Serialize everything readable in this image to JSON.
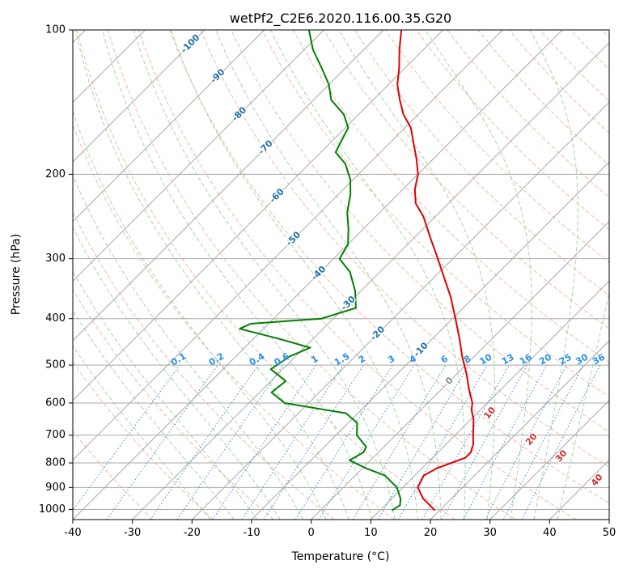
{
  "chart_data": {
    "type": "line",
    "subtype": "skew-t log-p diagram",
    "title": "wetPf2_C2E6.2020.116.00.35.G20",
    "xlabel": "Temperature (°C)",
    "ylabel": "Pressure (hPa)",
    "xlim": [
      -40,
      50
    ],
    "ylim": [
      1050,
      100
    ],
    "x_ticks": [
      -40,
      -30,
      -20,
      -10,
      0,
      10,
      20,
      30,
      40,
      50
    ],
    "y_ticks": [
      100,
      200,
      300,
      400,
      500,
      600,
      700,
      800,
      900,
      1000
    ],
    "grid": true,
    "colors": {
      "temperature": "#e00000",
      "dewpoint": "#008000",
      "isotherm": "#a8a8a8",
      "dry_adiabat": "#f4a07c",
      "moist_adiabat": "#98cc98",
      "mixing_ratio": "#3b8ee0",
      "isotherm_label": "#1f6fa8",
      "mixing_ratio_label": "#2a90e8",
      "adiabat_label": "#d03030"
    },
    "isotherm_labels": [
      -100,
      -90,
      -80,
      -70,
      -60,
      -50,
      -40,
      -30,
      -20,
      -10,
      0
    ],
    "mixing_ratio_labels": [
      "0.1",
      "0.2",
      "0.4",
      "0.6",
      "1",
      "1.5",
      "2",
      "3",
      "4",
      "6",
      "8",
      "10",
      "13",
      "16",
      "20",
      "25",
      "30",
      "36"
    ],
    "mixing_ratio_values": [
      0.1,
      0.2,
      0.4,
      0.6,
      1,
      1.5,
      2,
      3,
      4,
      6,
      8,
      10,
      13,
      16,
      20,
      25,
      30,
      36
    ],
    "adiabat_labels": [
      "10",
      "20",
      "30",
      "40"
    ],
    "series": [
      {
        "name": "Temperature",
        "points": [
          [
            1005,
            19.2
          ],
          [
            980,
            17.5
          ],
          [
            950,
            15.3
          ],
          [
            900,
            12.5
          ],
          [
            850,
            11.5
          ],
          [
            820,
            12.5
          ],
          [
            800,
            14.0
          ],
          [
            780,
            15.5
          ],
          [
            760,
            15.5
          ],
          [
            730,
            14.5
          ],
          [
            700,
            13.0
          ],
          [
            650,
            10.5
          ],
          [
            620,
            8.5
          ],
          [
            600,
            7.5
          ],
          [
            560,
            4.5
          ],
          [
            520,
            1.5
          ],
          [
            480,
            -2.0
          ],
          [
            440,
            -5.5
          ],
          [
            400,
            -9.5
          ],
          [
            360,
            -14.0
          ],
          [
            320,
            -19.5
          ],
          [
            300,
            -22.5
          ],
          [
            270,
            -27.5
          ],
          [
            245,
            -32.0
          ],
          [
            230,
            -35.5
          ],
          [
            215,
            -38.0
          ],
          [
            200,
            -40.0
          ],
          [
            185,
            -43.0
          ],
          [
            170,
            -46.5
          ],
          [
            160,
            -49.0
          ],
          [
            150,
            -52.5
          ],
          [
            140,
            -55.5
          ],
          [
            130,
            -58.5
          ],
          [
            120,
            -61.0
          ],
          [
            110,
            -64.0
          ],
          [
            100,
            -67.0
          ]
        ]
      },
      {
        "name": "Dewpoint",
        "points": [
          [
            1005,
            12.0
          ],
          [
            980,
            12.5
          ],
          [
            950,
            11.5
          ],
          [
            900,
            9.0
          ],
          [
            850,
            5.0
          ],
          [
            820,
            0.5
          ],
          [
            790,
            -3.5
          ],
          [
            760,
            -2.5
          ],
          [
            740,
            -3.0
          ],
          [
            700,
            -6.5
          ],
          [
            660,
            -8.5
          ],
          [
            630,
            -12.0
          ],
          [
            600,
            -24.0
          ],
          [
            570,
            -28.0
          ],
          [
            540,
            -27.5
          ],
          [
            510,
            -32.0
          ],
          [
            480,
            -31.0
          ],
          [
            460,
            -29.0
          ],
          [
            440,
            -36.0
          ],
          [
            420,
            -44.0
          ],
          [
            410,
            -43.0
          ],
          [
            400,
            -32.0
          ],
          [
            380,
            -28.0
          ],
          [
            350,
            -31.0
          ],
          [
            320,
            -35.0
          ],
          [
            300,
            -39.0
          ],
          [
            280,
            -40.0
          ],
          [
            260,
            -42.5
          ],
          [
            240,
            -45.5
          ],
          [
            220,
            -48.0
          ],
          [
            205,
            -50.5
          ],
          [
            190,
            -54.0
          ],
          [
            180,
            -57.5
          ],
          [
            170,
            -58.5
          ],
          [
            160,
            -59.5
          ],
          [
            150,
            -62.5
          ],
          [
            140,
            -67.0
          ],
          [
            130,
            -70.0
          ],
          [
            120,
            -74.0
          ],
          [
            110,
            -78.5
          ],
          [
            100,
            -82.5
          ]
        ]
      }
    ]
  }
}
